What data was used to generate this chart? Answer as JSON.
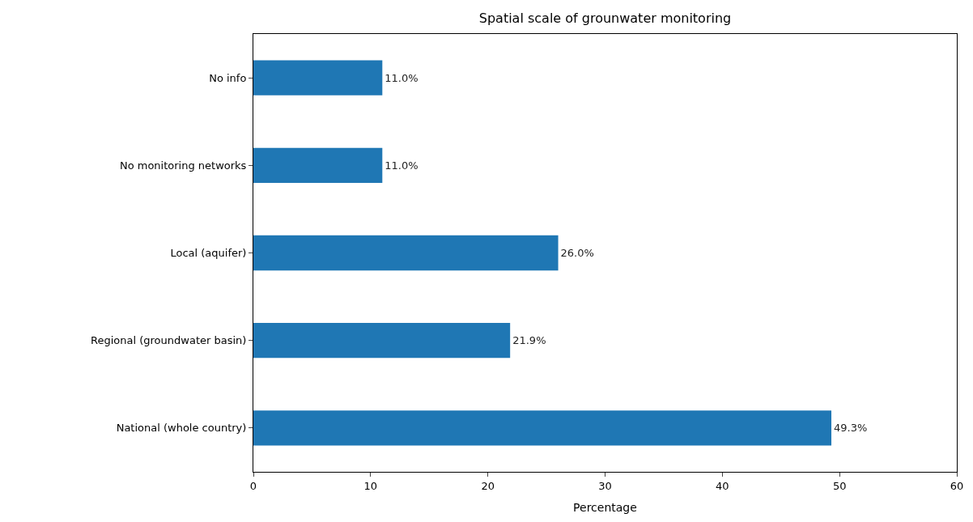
{
  "chart_data": {
    "type": "bar",
    "orientation": "horizontal",
    "title": "Spatial scale of grounwater monitoring",
    "xlabel": "Percentage",
    "categories": [
      "No info",
      "No monitoring networks",
      "Local (aquifer)",
      "Regional (groundwater basin)",
      "National (whole country)"
    ],
    "values": [
      11.0,
      11.0,
      26.0,
      21.9,
      49.3
    ],
    "value_labels": [
      "11.0%",
      "11.0%",
      "26.0%",
      "21.9%",
      "49.3%"
    ],
    "color": "#1f77b4",
    "xlim": [
      0,
      60
    ],
    "xticks": [
      0,
      10,
      20,
      30,
      40,
      50,
      60
    ]
  }
}
